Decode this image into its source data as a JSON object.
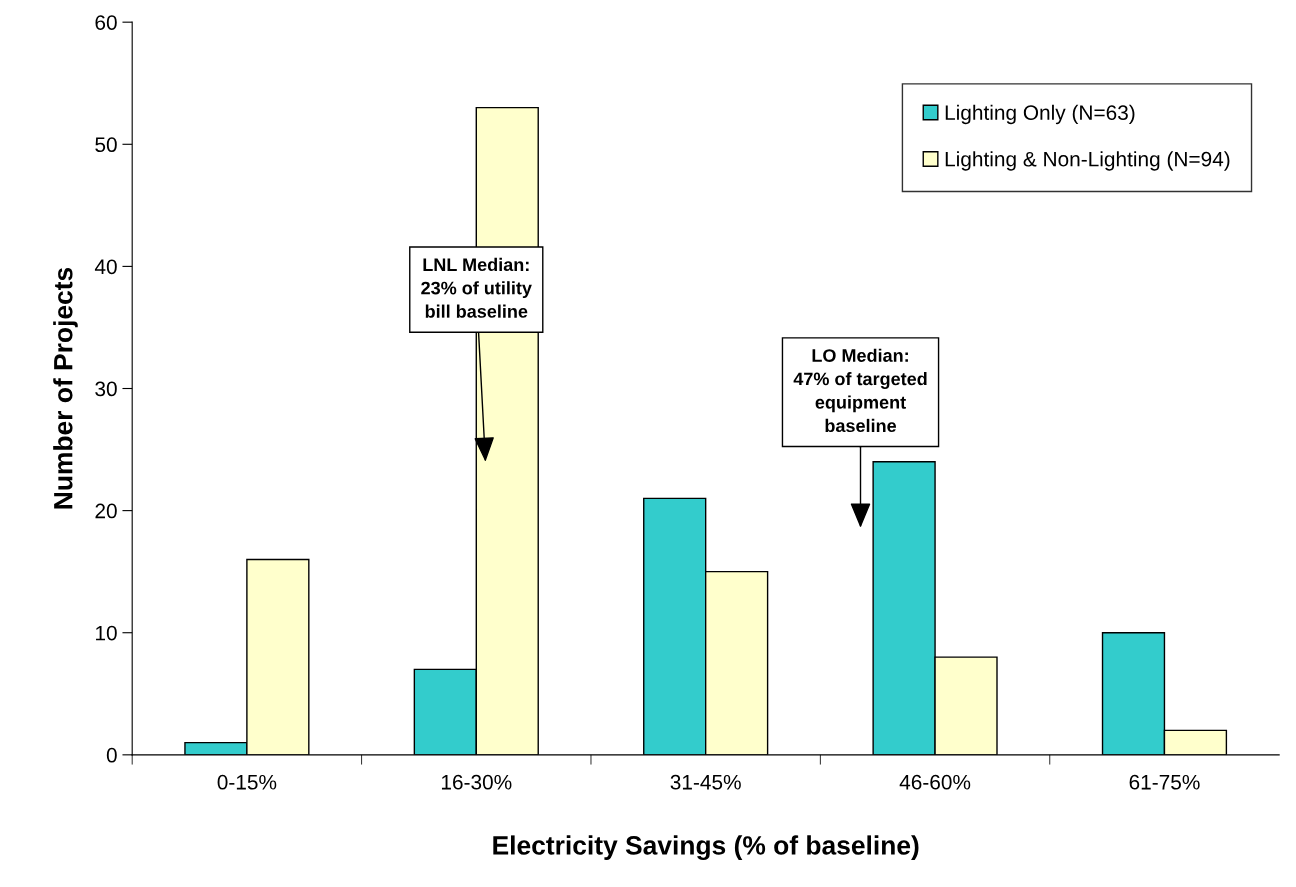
{
  "chart_data": {
    "type": "bar",
    "xlabel": "Electricity Savings (% of baseline)",
    "ylabel": "Number of Projects",
    "categories": [
      "0-15%",
      "16-30%",
      "31-45%",
      "46-60%",
      "61-75%"
    ],
    "series": [
      {
        "name": "Lighting Only (N=63)",
        "color": "#33cccc",
        "values": [
          1,
          7,
          21,
          24,
          10
        ]
      },
      {
        "name": "Lighting & Non-Lighting (N=94)",
        "color": "#ffffcc",
        "values": [
          16,
          53,
          15,
          8,
          2
        ]
      }
    ],
    "ylim": [
      0,
      60
    ],
    "yticks": [
      0,
      10,
      20,
      30,
      40,
      50,
      60
    ],
    "grid": false,
    "legend": "top right",
    "annotations": [
      "LNL Median:\n23% of utility\nbill baseline",
      "LO Median:\n47% of targeted\nequipment\nbaseline"
    ]
  }
}
